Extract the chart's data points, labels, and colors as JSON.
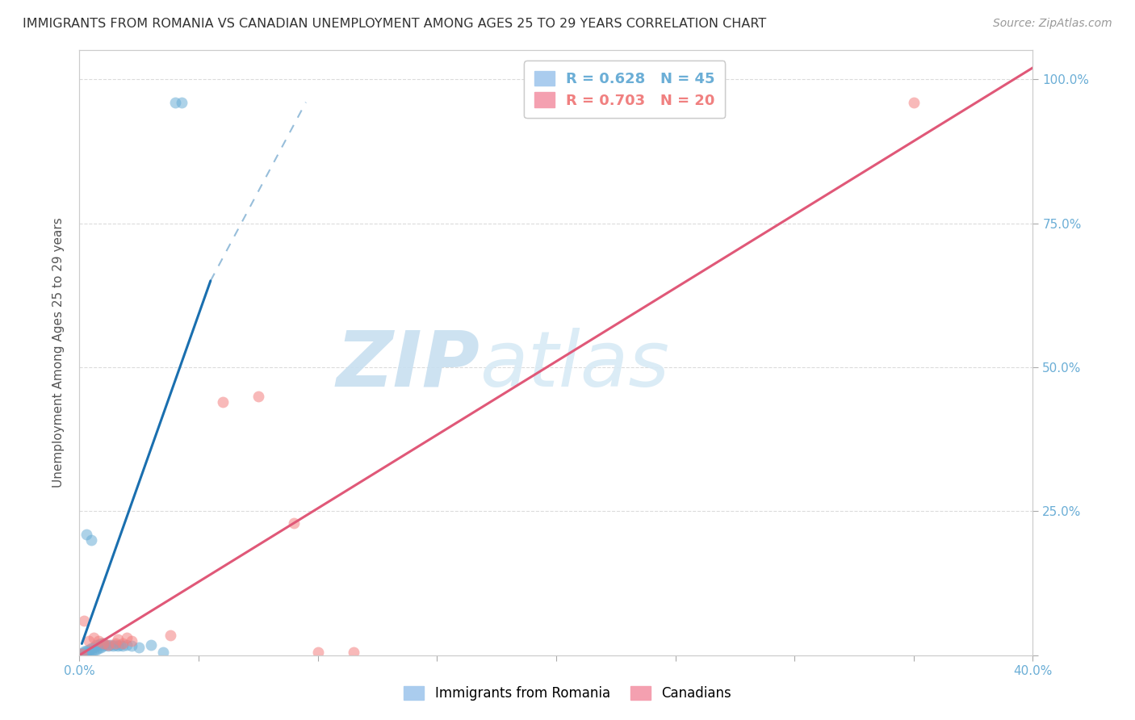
{
  "title": "IMMIGRANTS FROM ROMANIA VS CANADIAN UNEMPLOYMENT AMONG AGES 25 TO 29 YEARS CORRELATION CHART",
  "source": "Source: ZipAtlas.com",
  "ylabel": "Unemployment Among Ages 25 to 29 years",
  "ytick_positions": [
    0.0,
    0.25,
    0.5,
    0.75,
    1.0
  ],
  "ytick_labels": [
    "",
    "25.0%",
    "50.0%",
    "75.0%",
    "100.0%"
  ],
  "xlim": [
    0.0,
    0.4
  ],
  "ylim": [
    0.0,
    1.05
  ],
  "romania_scatter": [
    [
      0.0005,
      0.002
    ],
    [
      0.001,
      0.003
    ],
    [
      0.0015,
      0.004
    ],
    [
      0.002,
      0.002
    ],
    [
      0.002,
      0.006
    ],
    [
      0.003,
      0.003
    ],
    [
      0.003,
      0.008
    ],
    [
      0.004,
      0.005
    ],
    [
      0.004,
      0.01
    ],
    [
      0.005,
      0.006
    ],
    [
      0.005,
      0.012
    ],
    [
      0.006,
      0.008
    ],
    [
      0.006,
      0.014
    ],
    [
      0.007,
      0.01
    ],
    [
      0.007,
      0.018
    ],
    [
      0.008,
      0.012
    ],
    [
      0.008,
      0.018
    ],
    [
      0.009,
      0.014
    ],
    [
      0.009,
      0.02
    ],
    [
      0.01,
      0.016
    ],
    [
      0.01,
      0.02
    ],
    [
      0.011,
      0.018
    ],
    [
      0.012,
      0.016
    ],
    [
      0.013,
      0.018
    ],
    [
      0.014,
      0.016
    ],
    [
      0.015,
      0.018
    ],
    [
      0.016,
      0.016
    ],
    [
      0.017,
      0.018
    ],
    [
      0.018,
      0.016
    ],
    [
      0.02,
      0.018
    ],
    [
      0.022,
      0.016
    ],
    [
      0.025,
      0.014
    ],
    [
      0.03,
      0.018
    ],
    [
      0.035,
      0.005
    ],
    [
      0.003,
      0.21
    ],
    [
      0.005,
      0.2
    ],
    [
      0.04,
      0.96
    ],
    [
      0.043,
      0.96
    ]
  ],
  "romania_line_solid": [
    [
      0.001,
      0.02
    ],
    [
      0.055,
      0.65
    ]
  ],
  "romania_line_dashed": [
    [
      0.055,
      0.65
    ],
    [
      0.095,
      0.96
    ]
  ],
  "canadian_scatter": [
    [
      0.001,
      0.002
    ],
    [
      0.002,
      0.06
    ],
    [
      0.004,
      0.025
    ],
    [
      0.006,
      0.03
    ],
    [
      0.008,
      0.025
    ],
    [
      0.01,
      0.02
    ],
    [
      0.012,
      0.018
    ],
    [
      0.015,
      0.02
    ],
    [
      0.016,
      0.028
    ],
    [
      0.018,
      0.02
    ],
    [
      0.02,
      0.03
    ],
    [
      0.022,
      0.025
    ],
    [
      0.038,
      0.035
    ],
    [
      0.06,
      0.44
    ],
    [
      0.075,
      0.45
    ],
    [
      0.09,
      0.23
    ],
    [
      0.1,
      0.005
    ],
    [
      0.115,
      0.005
    ],
    [
      0.35,
      0.96
    ]
  ],
  "canadian_line": [
    [
      0.0,
      0.0
    ],
    [
      0.4,
      1.02
    ]
  ],
  "scatter_colors": {
    "romania": "#6baed6",
    "canadian": "#f48080"
  },
  "romania_line_color": "#1a6faf",
  "canadian_line_color": "#e05878",
  "watermark_zip": "ZIP",
  "watermark_atlas": "atlas",
  "background_color": "#ffffff",
  "grid_color": "#cccccc",
  "title_fontsize": 12,
  "axis_color": "#6baed6"
}
